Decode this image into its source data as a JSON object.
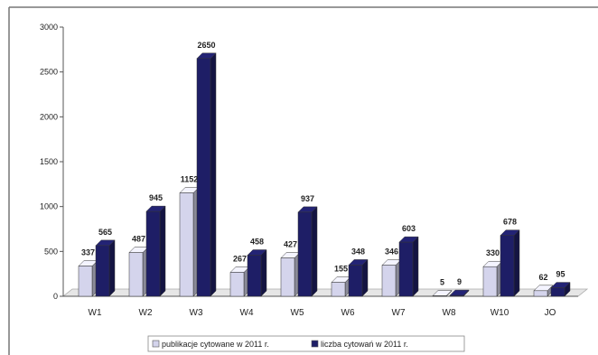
{
  "chart_data": {
    "type": "bar",
    "style": "3d-clustered-column",
    "categories": [
      "W1",
      "W2",
      "W3",
      "W4",
      "W5",
      "W6",
      "W7",
      "W8",
      "W10",
      "JO"
    ],
    "series": [
      {
        "name": "publikacje cytowane w 2011 r.",
        "values": [
          337,
          487,
          1152,
          267,
          427,
          155,
          346,
          5,
          330,
          62
        ],
        "color": "#d4d4ec"
      },
      {
        "name": "liczba cytowań w 2011 r.",
        "values": [
          565,
          945,
          2650,
          458,
          937,
          348,
          603,
          9,
          678,
          95
        ],
        "color": "#1e1e66"
      }
    ],
    "yticks": [
      "0",
      "500",
      "1000",
      "1500",
      "2000",
      "2500",
      "3000"
    ],
    "ylim": [
      0,
      3000
    ],
    "grid": false,
    "legend_position": "bottom"
  }
}
